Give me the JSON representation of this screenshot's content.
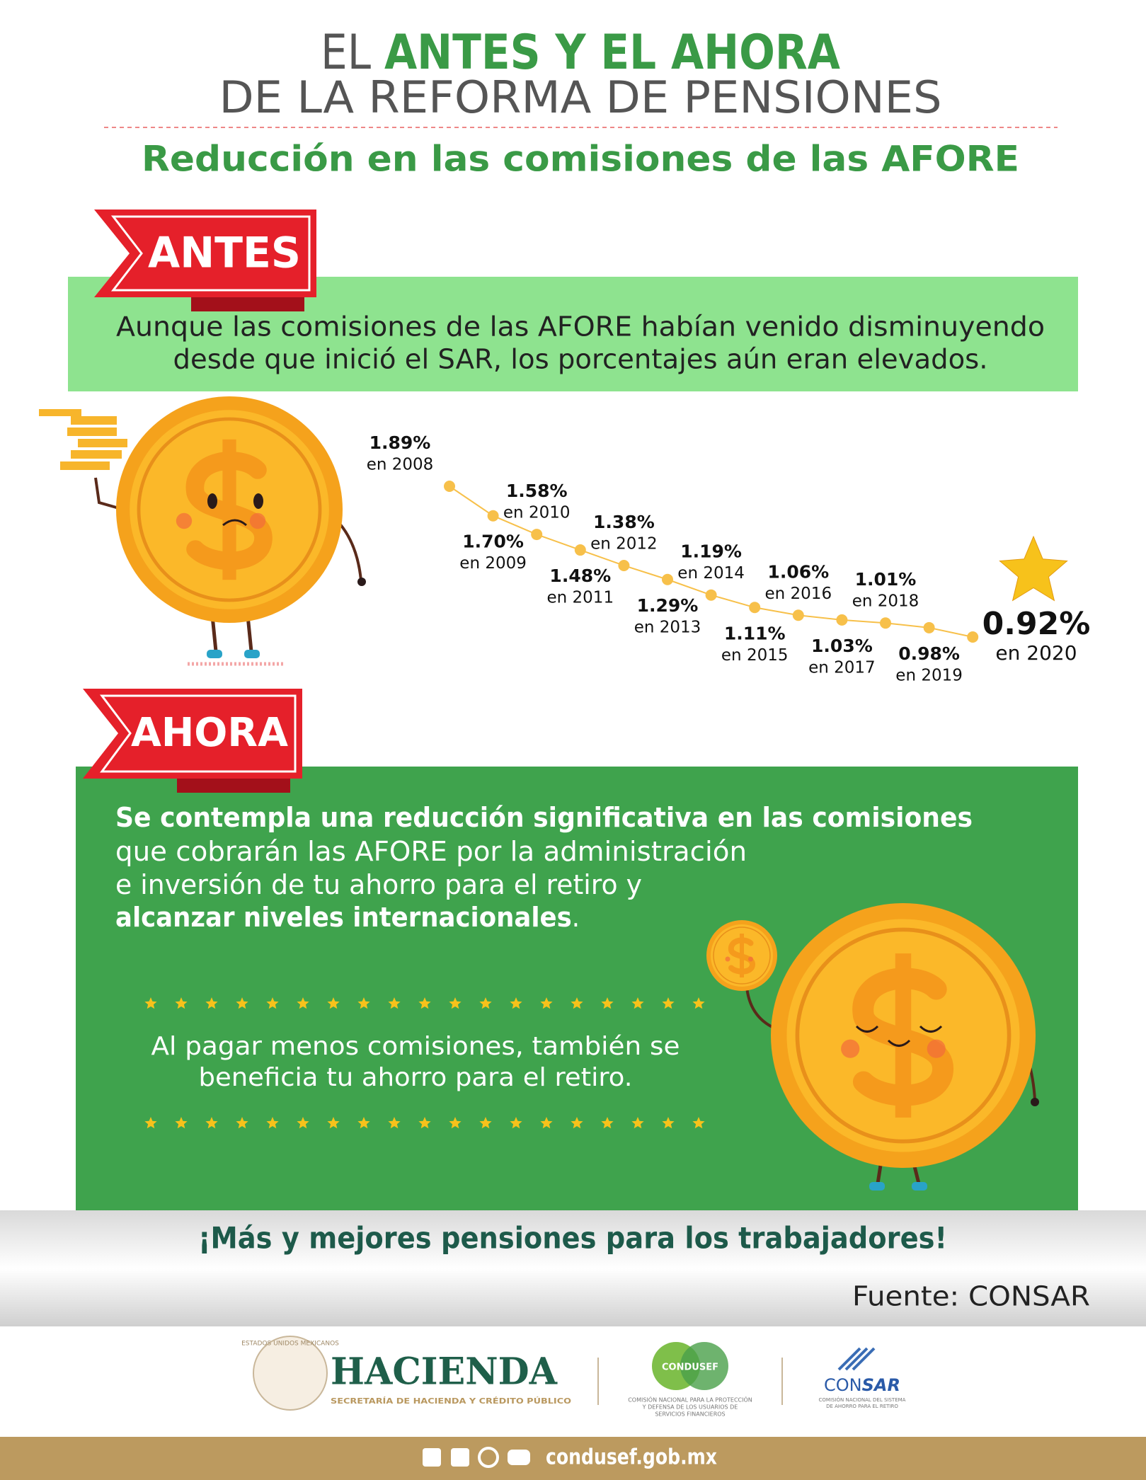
{
  "header": {
    "title_light": "EL",
    "title_bold": "ANTES Y EL AHORA",
    "title_line2": "DE LA REFORMA DE PENSIONES",
    "subtitle": "Reducción en las comisiones de las AFORE"
  },
  "antes": {
    "label": "ANTES",
    "lines": [
      "Aunque las comisiones de las AFORE habían venido disminuyendo",
      "desde que inició el SAR, los porcentajes aún eran elevados."
    ]
  },
  "chart_data": {
    "type": "line",
    "categories": [
      "en 2008",
      "en 2009",
      "en 2010",
      "en 2011",
      "en 2012",
      "en 2013",
      "en 2014",
      "en 2015",
      "en 2016",
      "en 2017",
      "en 2018",
      "en 2019",
      "en 2020"
    ],
    "values": [
      1.89,
      1.7,
      1.58,
      1.48,
      1.38,
      1.29,
      1.19,
      1.11,
      1.06,
      1.03,
      1.01,
      0.98,
      0.92
    ],
    "value_labels": [
      "1.89%",
      "1.70%",
      "1.58%",
      "1.48%",
      "1.38%",
      "1.29%",
      "1.19%",
      "1.11%",
      "1.06%",
      "1.03%",
      "1.01%",
      "0.98%",
      "0.92%"
    ],
    "color": "#f7c04a"
  },
  "ahora": {
    "label": "AHORA",
    "lines": [
      [
        {
          "text": "Se contempla una reducción significativa en las comisiones",
          "bold": true
        }
      ],
      [
        {
          "text": "que cobrarán las AFORE por la administración",
          "bold": false
        }
      ],
      [
        {
          "text": "e inversión de tu ahorro para el retiro y",
          "bold": false
        }
      ],
      [
        {
          "text": "alcanzar niveles internacionales",
          "bold": true
        },
        {
          "text": ".",
          "bold": false
        }
      ]
    ],
    "note": [
      "Al pagar menos comisiones, también se",
      "beneficia tu ahorro para el retiro."
    ]
  },
  "slogan": "¡Más y mejores pensiones para los trabajadores!",
  "source": "Fuente: CONSAR",
  "logos": {
    "seal": "ESTADOS UNIDOS MEXICANOS",
    "hacienda": "HACIENDA",
    "hacienda_sub": "SECRETARÍA DE HACIENDA Y CRÉDITO PÚBLICO",
    "condusef": "CONDUSEF",
    "condusef_sub": [
      "COMISIÓN NACIONAL PARA LA PROTECCIÓN",
      "Y DEFENSA DE LOS USUARIOS DE",
      "SERVICIOS FINANCIEROS"
    ],
    "consar_a": "CON",
    "consar_b": "SAR",
    "consar_sub": [
      "COMISIÓN NACIONAL DEL SISTEMA",
      "DE AHORRO PARA EL RETIRO"
    ]
  },
  "footer": {
    "website": "condusef.gob.mx"
  }
}
